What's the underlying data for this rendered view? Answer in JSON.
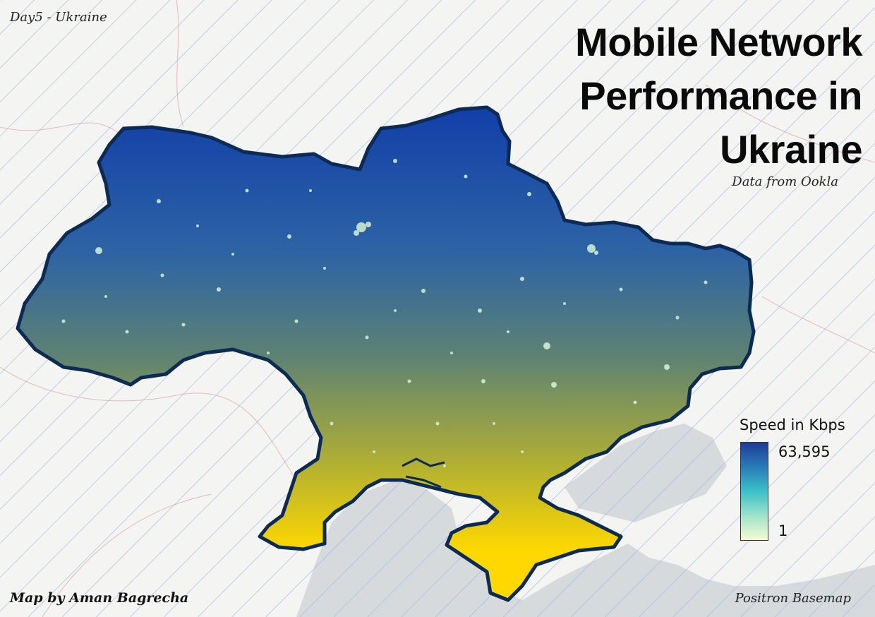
{
  "map": {
    "tag": "Day5 - Ukraine",
    "title": "Mobile Network Performance in Ukraine",
    "subtitle": "Data from Ookla",
    "credit": "Map by Aman Bagrecha",
    "basemap_credit": "Positron Basemap"
  },
  "legend": {
    "title": "Speed in Kbps",
    "max_label": "63,595",
    "min_label": "1",
    "ramp_colors": [
      "#1f3b9a",
      "#2a7bb8",
      "#3bc0c8",
      "#9fe2c9",
      "#f7fbd5"
    ]
  },
  "colors": {
    "country_top": "#123fa8",
    "country_mid": "#6e8b6a",
    "country_bottom": "#fed800",
    "outline": "#0c2a52",
    "sea": "#d6dadd",
    "land": "#f4f4f3",
    "hatch": "#9fb6dc"
  }
}
